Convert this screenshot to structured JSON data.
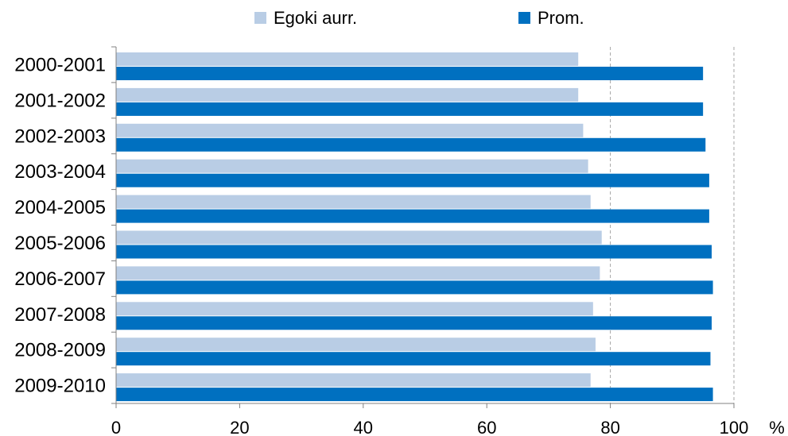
{
  "chart_data": {
    "type": "bar",
    "orientation": "horizontal",
    "categories": [
      "2000-2001",
      "2001-2002",
      "2002-2003",
      "2003-2004",
      "2004-2005",
      "2005-2006",
      "2006-2007",
      "2007-2008",
      "2008-2009",
      "2009-2010"
    ],
    "series": [
      {
        "name": "Egoki aurr.",
        "color": "#b9cde5",
        "values": [
          74.8,
          74.8,
          75.6,
          76.4,
          76.8,
          78.6,
          78.3,
          77.2,
          77.6,
          76.8
        ]
      },
      {
        "name": "Prom.",
        "color": "#0070c0",
        "values": [
          95.0,
          95.0,
          95.4,
          96.0,
          96.0,
          96.4,
          96.6,
          96.4,
          96.2,
          96.6
        ]
      }
    ],
    "xlim": [
      0,
      100
    ],
    "xticks": [
      0,
      20,
      40,
      60,
      80,
      100
    ],
    "xticks_labels": [
      "0",
      "20",
      "40",
      "60",
      "80",
      "100"
    ],
    "unit": "%",
    "grid": "vertical dashed at 80 and 100",
    "legend": "top"
  }
}
